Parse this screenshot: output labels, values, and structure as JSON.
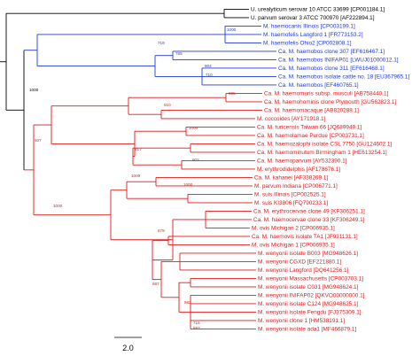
{
  "colors": {
    "black": "#000000",
    "blue": "#1f3ad8",
    "red": "#e3191c"
  },
  "scale_bar": {
    "label": "2.0"
  },
  "taxa": [
    {
      "label": "U. urealyticum serovar 10 ATCC 33699 [CP001184.1]",
      "color": "black"
    },
    {
      "label": "U. parvum serovar 3 ATCC 700970 [AF222894.1]",
      "color": "black"
    },
    {
      "label": "M. haemocanis Illinois [CP003199.1]",
      "color": "blue"
    },
    {
      "label": "M. haemofelis Langford 1 [FR773153.2]",
      "color": "blue"
    },
    {
      "label": "M. haemofelis Ohio2 [CP002808.1]",
      "color": "blue"
    },
    {
      "label": "Ca. M. haemobos clone 307 [EF616467.1]",
      "color": "blue"
    },
    {
      "label": "Ca. M. haemobos INIFAP01 [LWUJ01000012.1]",
      "color": "blue",
      "highlight": true
    },
    {
      "label": "Ca. M. haemobos clone 311 [EF616468.1]",
      "color": "blue"
    },
    {
      "label": "Ca. M. haemobos isolate cattle no. 18 [EU367965.1]",
      "color": "blue"
    },
    {
      "label": "Ca. M. haemobos [EF460765.1]",
      "color": "blue"
    },
    {
      "label": "Ca. M. haemomuris subsp. musculi [AB758440.1]",
      "color": "red"
    },
    {
      "label": "Ca. M. haemohominis clone Plymouth [GU562823.1]",
      "color": "red"
    },
    {
      "label": "Ca. M. haemomacaque [AB820288.1]",
      "color": "red"
    },
    {
      "label": "M. coccoides [AY171918.1]",
      "color": "red"
    },
    {
      "label": "Ca. M. turicensis Taiwan 66 [JQ689949.1]",
      "color": "red"
    },
    {
      "label": "Ca. M. haemolamae Purdue [CP003731.1]",
      "color": "red"
    },
    {
      "label": "Ca. M. haemozalophi isolate CSL 7750 [GU124602.1]",
      "color": "red"
    },
    {
      "label": "Ca. M. haemominutum Birmingham 1 [HE613254.1]",
      "color": "red"
    },
    {
      "label": "Ca. M. haemoparvum [AY532390.1]",
      "color": "red"
    },
    {
      "label": "M. erythrodidelphis [AF178676.1]",
      "color": "red"
    },
    {
      "label": "Ca. M. kahanei [AF338269.1]",
      "color": "red"
    },
    {
      "label": "M. parvum Indiana [CP006771.1]",
      "color": "red"
    },
    {
      "label": "M. suis Illinois [CP002525.1]",
      "color": "red"
    },
    {
      "label": "M. suis KI3806 [FQ790233.1]",
      "color": "red"
    },
    {
      "label": "Ca. M. erythrocervae clone 49 [KF306251.1]",
      "color": "red"
    },
    {
      "label": "Ca. M. haemocervae clone 33 [KF306249.1]",
      "color": "red"
    },
    {
      "label": "M. ovis Michigan 2 [CP006935.1]",
      "color": "red"
    },
    {
      "label": "Ca. M. haemovis isolate TA1 [JF931131.1]",
      "color": "red"
    },
    {
      "label": "M. ovis Michigan 1 [CP006935.1]",
      "color": "red"
    },
    {
      "label": "M. wenyonii isolate B003 [MG948626.1]",
      "color": "red"
    },
    {
      "label": "M. wenyonii CGXD [EF221880.1]",
      "color": "red"
    },
    {
      "label": "M. wenyonii Langford [DQ641256.1]",
      "color": "red"
    },
    {
      "label": "M. wenyonii Massachusetts [CP003703.1]",
      "color": "red"
    },
    {
      "label": "M. wenyonii isolate C031 [MG948624.1]",
      "color": "red"
    },
    {
      "label": "M. wenyonii INIFAP02 [QKVO00000000.1]",
      "color": "red",
      "highlight": true
    },
    {
      "label": "M. wenyonii isolate C124 [MG948625.1]",
      "color": "red"
    },
    {
      "label": "M. wenyonii isolate Fengdu [FJ375309.1]",
      "color": "red"
    },
    {
      "label": "M. wenyonii clone 1 [HM538191.1]",
      "color": "red"
    },
    {
      "label": "M. wenyonii isolate ada1 [MF466879.1]",
      "color": "red"
    }
  ],
  "bootstrap": [
    {
      "value": "1000",
      "color": "black"
    },
    {
      "value": "1000",
      "color": "blue"
    },
    {
      "value": "719",
      "color": "blue"
    },
    {
      "value": "765",
      "color": "blue"
    },
    {
      "value": "904",
      "color": "blue"
    },
    {
      "value": "710",
      "color": "blue"
    },
    {
      "value": "507",
      "color": "red"
    },
    {
      "value": "1000",
      "color": "red"
    },
    {
      "value": "985",
      "color": "red"
    },
    {
      "value": "510",
      "color": "red"
    },
    {
      "value": "1000",
      "color": "red"
    },
    {
      "value": "902",
      "color": "red"
    },
    {
      "value": "1000",
      "color": "red"
    },
    {
      "value": "917",
      "color": "red"
    },
    {
      "value": "1000",
      "color": "red"
    },
    {
      "value": "879",
      "color": "red"
    },
    {
      "value": "887",
      "color": "red"
    },
    {
      "value": "982",
      "color": "red"
    },
    {
      "value": "715",
      "color": "red"
    },
    {
      "value": "587",
      "color": "red"
    }
  ]
}
